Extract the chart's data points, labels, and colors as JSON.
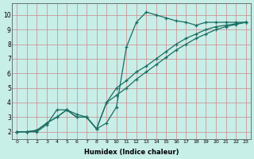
{
  "xlabel": "Humidex (Indice chaleur)",
  "background_color": "#c8eee8",
  "grid_color": "#cc8888",
  "line_color": "#1a6e62",
  "xlim": [
    -0.5,
    23.5
  ],
  "ylim": [
    1.5,
    10.8
  ],
  "xticks": [
    0,
    1,
    2,
    3,
    4,
    5,
    6,
    7,
    8,
    9,
    10,
    11,
    12,
    13,
    14,
    15,
    16,
    17,
    18,
    19,
    20,
    21,
    22,
    23
  ],
  "yticks": [
    2,
    3,
    4,
    5,
    6,
    7,
    8,
    9,
    10
  ],
  "line1_x": [
    0,
    1,
    2,
    3,
    4,
    5,
    6,
    7,
    8,
    9,
    10,
    11,
    12,
    13,
    14,
    15,
    16,
    17,
    18,
    19,
    20,
    21,
    22,
    23
  ],
  "line1_y": [
    2.0,
    2.0,
    2.0,
    2.5,
    3.5,
    3.5,
    3.2,
    3.0,
    2.2,
    2.6,
    3.7,
    7.8,
    9.5,
    10.2,
    10.0,
    9.8,
    9.6,
    9.5,
    9.3,
    9.5,
    9.5,
    9.5,
    9.5,
    9.5
  ],
  "line2_x": [
    0,
    1,
    2,
    3,
    4,
    5,
    6,
    7,
    8,
    9,
    10,
    11,
    12,
    13,
    14,
    15,
    16,
    17,
    18,
    19,
    20,
    21,
    22,
    23
  ],
  "line2_y": [
    2.0,
    2.0,
    2.1,
    2.6,
    3.0,
    3.5,
    3.0,
    3.0,
    2.2,
    4.0,
    5.0,
    5.5,
    6.1,
    6.5,
    7.0,
    7.5,
    8.0,
    8.4,
    8.7,
    9.0,
    9.2,
    9.3,
    9.4,
    9.5
  ],
  "line3_x": [
    0,
    1,
    2,
    3,
    4,
    5,
    6,
    7,
    8,
    9,
    10,
    11,
    12,
    13,
    14,
    15,
    16,
    17,
    18,
    19,
    20,
    21,
    22,
    23
  ],
  "line3_y": [
    2.0,
    2.0,
    2.1,
    2.6,
    3.0,
    3.5,
    3.0,
    3.0,
    2.2,
    4.0,
    4.5,
    5.0,
    5.6,
    6.1,
    6.6,
    7.1,
    7.6,
    8.0,
    8.4,
    8.7,
    9.0,
    9.2,
    9.35,
    9.5
  ]
}
